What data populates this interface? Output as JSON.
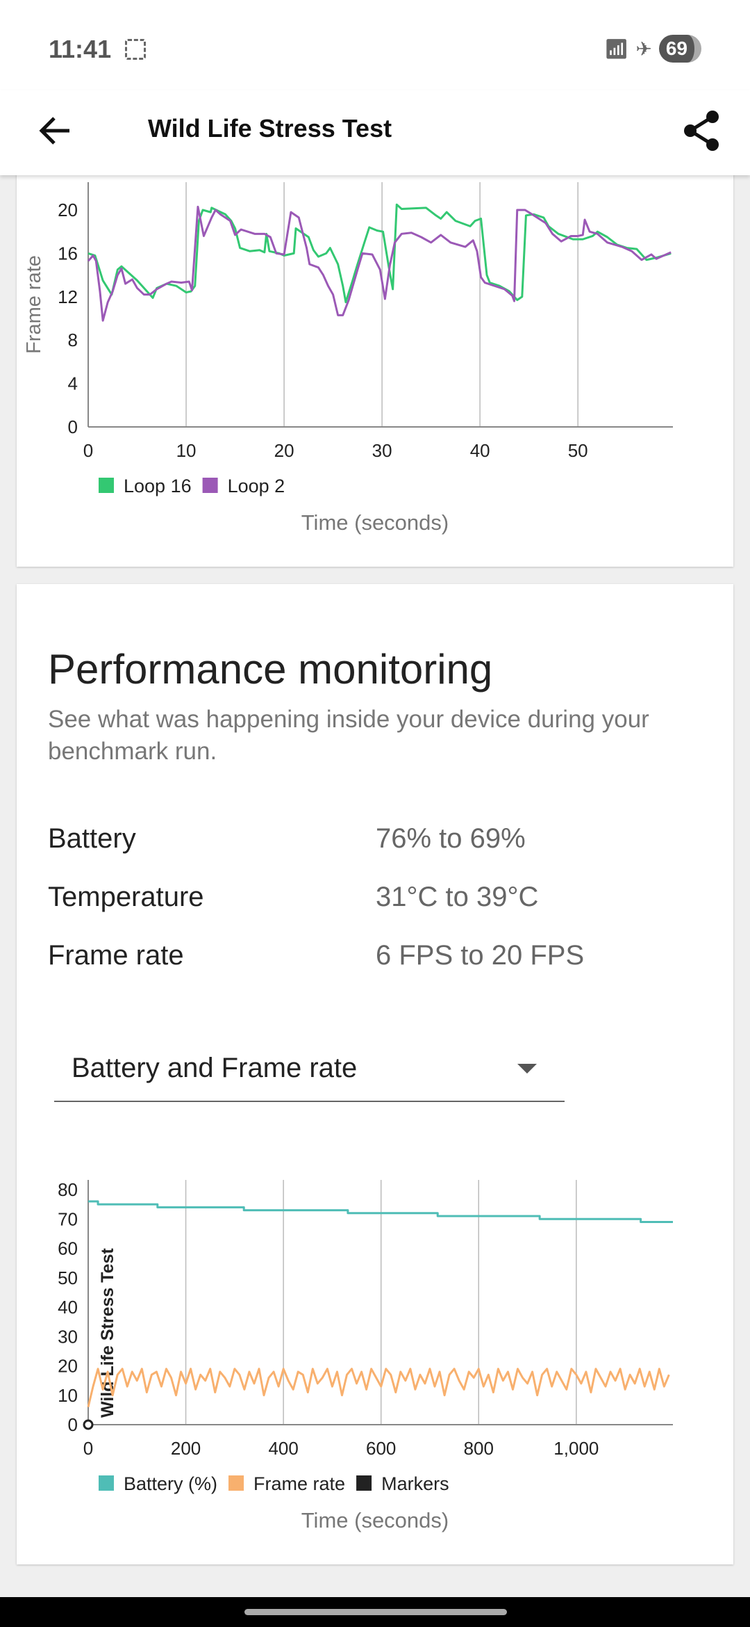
{
  "status_bar": {
    "time": "11:41",
    "battery": "69",
    "icons": [
      "screenshot-icon",
      "wifi-icon",
      "airplane-icon",
      "battery-icon"
    ]
  },
  "app_bar": {
    "title": "Wild Life Stress Test",
    "back_icon": "arrow-left-icon",
    "share_icon": "share-icon"
  },
  "performance": {
    "title": "Performance monitoring",
    "subtitle": "See what was happening inside your device during your benchmark run.",
    "rows": [
      {
        "label": "Battery",
        "value": "76% to 69%"
      },
      {
        "label": "Temperature",
        "value": "31°C to 39°C"
      },
      {
        "label": "Frame rate",
        "value": "6 FPS to 20 FPS"
      }
    ],
    "dropdown": {
      "selected": "Battery and Frame rate"
    }
  },
  "chart_data": [
    {
      "type": "line",
      "xlabel": "Time (seconds)",
      "ylabel": "Frame rate",
      "xlim": [
        0,
        59.7
      ],
      "ylim": [
        0,
        22
      ],
      "xticks": [
        "0",
        "10",
        "20",
        "30",
        "40",
        "50"
      ],
      "yticks": [
        "0",
        "4",
        "8",
        "12",
        "16",
        "20"
      ],
      "grid": "vertical",
      "legend": "bottom-left",
      "series": [
        {
          "name": "Loop 16",
          "color": "#33c872",
          "points": [
            [
              0,
              16
            ],
            [
              0.7,
              15.8
            ],
            [
              1.5,
              13.5
            ],
            [
              2.4,
              12.2
            ],
            [
              3,
              14.5
            ],
            [
              3.4,
              14.8
            ],
            [
              5,
              13.5
            ],
            [
              6,
              12.5
            ],
            [
              6.6,
              11.9
            ],
            [
              7,
              12.8
            ],
            [
              8,
              13.2
            ],
            [
              9,
              13
            ],
            [
              10,
              12.4
            ],
            [
              10.5,
              12.5
            ],
            [
              10.9,
              13
            ],
            [
              11.3,
              19
            ],
            [
              11.7,
              20
            ],
            [
              12.5,
              19.8
            ],
            [
              12.6,
              20.2
            ],
            [
              14,
              19.6
            ],
            [
              14.6,
              19
            ],
            [
              15,
              18.3
            ],
            [
              15.5,
              16.5
            ],
            [
              16.5,
              16.2
            ],
            [
              17.5,
              16.3
            ],
            [
              18,
              16.1
            ],
            [
              18.2,
              17.8
            ],
            [
              18.5,
              16.2
            ],
            [
              19.5,
              16
            ],
            [
              20,
              15.8
            ],
            [
              21,
              16
            ],
            [
              21.2,
              18.3
            ],
            [
              22.5,
              17.5
            ],
            [
              23,
              16.3
            ],
            [
              23.5,
              15.7
            ],
            [
              24.3,
              16
            ],
            [
              24.7,
              16.5
            ],
            [
              25.5,
              15
            ],
            [
              26,
              13
            ],
            [
              26.3,
              11.5
            ],
            [
              27,
              13.5
            ],
            [
              27.5,
              15
            ],
            [
              28.2,
              17
            ],
            [
              28.7,
              18.4
            ],
            [
              29.5,
              18.1
            ],
            [
              30.1,
              18
            ],
            [
              30.7,
              14.7
            ],
            [
              31.1,
              12.7
            ],
            [
              31.5,
              20.5
            ],
            [
              32,
              20.1
            ],
            [
              34.5,
              20.2
            ],
            [
              35.5,
              19.5
            ],
            [
              36,
              19.2
            ],
            [
              36.6,
              19.8
            ],
            [
              37.5,
              19
            ],
            [
              39,
              18.5
            ],
            [
              39.5,
              19
            ],
            [
              40.1,
              19.2
            ],
            [
              40.7,
              14
            ],
            [
              41,
              13.3
            ],
            [
              42,
              13
            ],
            [
              43,
              12.5
            ],
            [
              43.8,
              11.7
            ],
            [
              44.3,
              12
            ],
            [
              44.7,
              19.5
            ],
            [
              45.5,
              19.6
            ],
            [
              46.5,
              19.3
            ],
            [
              47,
              18.5
            ],
            [
              48,
              17.8
            ],
            [
              49.5,
              17.3
            ],
            [
              50.5,
              17.3
            ],
            [
              51.5,
              17.6
            ],
            [
              52,
              18
            ],
            [
              53,
              17.5
            ],
            [
              54,
              16.8
            ],
            [
              55,
              16.5
            ],
            [
              56,
              16.4
            ],
            [
              57,
              15.4
            ],
            [
              58,
              15.6
            ],
            [
              59.5,
              16
            ]
          ]
        },
        {
          "name": "Loop 2",
          "color": "#9b59b6",
          "points": [
            [
              0,
              15.3
            ],
            [
              0.5,
              15.8
            ],
            [
              0.8,
              15.3
            ],
            [
              1.2,
              12.5
            ],
            [
              1.5,
              9.8
            ],
            [
              2,
              11.5
            ],
            [
              2.5,
              12.5
            ],
            [
              3,
              14
            ],
            [
              3.4,
              14.6
            ],
            [
              3.8,
              13.2
            ],
            [
              4.5,
              13.6
            ],
            [
              5,
              12.8
            ],
            [
              5.7,
              12.2
            ],
            [
              6.3,
              12.2
            ],
            [
              7,
              12.7
            ],
            [
              8,
              13.2
            ],
            [
              8.5,
              13.4
            ],
            [
              9.5,
              13.3
            ],
            [
              10.3,
              13.4
            ],
            [
              10.6,
              12.6
            ],
            [
              11.2,
              20.3
            ],
            [
              11.8,
              17.6
            ],
            [
              12.6,
              19.3
            ],
            [
              13,
              20
            ],
            [
              13.5,
              19.6
            ],
            [
              14.5,
              19
            ],
            [
              15,
              17.7
            ],
            [
              15.6,
              18.2
            ],
            [
              17,
              17.8
            ],
            [
              18,
              17.8
            ],
            [
              18.6,
              17.5
            ],
            [
              19.2,
              16
            ],
            [
              20,
              15.9
            ],
            [
              20.7,
              19.8
            ],
            [
              21.5,
              19.3
            ],
            [
              22.3,
              16.5
            ],
            [
              22.6,
              15
            ],
            [
              23.5,
              14.7
            ],
            [
              24,
              14
            ],
            [
              24.5,
              13
            ],
            [
              25,
              12.2
            ],
            [
              25.5,
              10.3
            ],
            [
              26,
              10.3
            ],
            [
              26.6,
              11.7
            ],
            [
              27.5,
              14.5
            ],
            [
              28,
              16
            ],
            [
              29,
              15.9
            ],
            [
              29.8,
              14.5
            ],
            [
              30.3,
              11.8
            ],
            [
              30.8,
              14.9
            ],
            [
              31.3,
              17
            ],
            [
              32,
              17.8
            ],
            [
              33,
              17.9
            ],
            [
              34,
              17.5
            ],
            [
              35,
              17
            ],
            [
              36,
              17.7
            ],
            [
              37,
              17
            ],
            [
              38.5,
              16.6
            ],
            [
              39.3,
              17.2
            ],
            [
              39.7,
              16.2
            ],
            [
              40.1,
              13.8
            ],
            [
              40.5,
              13.3
            ],
            [
              41.5,
              13
            ],
            [
              42.5,
              12.7
            ],
            [
              43.3,
              12.1
            ],
            [
              43.5,
              11.6
            ],
            [
              43.8,
              20
            ],
            [
              44.6,
              20
            ],
            [
              45.5,
              19.5
            ],
            [
              46.7,
              18.8
            ],
            [
              47.4,
              17.8
            ],
            [
              48.3,
              17.1
            ],
            [
              49.3,
              17.6
            ],
            [
              50,
              17.6
            ],
            [
              50.5,
              17.7
            ],
            [
              50.7,
              19.1
            ],
            [
              51.2,
              18
            ],
            [
              52,
              17.8
            ],
            [
              53,
              17
            ],
            [
              54.5,
              16.6
            ],
            [
              55.5,
              16.2
            ],
            [
              56.5,
              15.4
            ],
            [
              57.5,
              15.9
            ],
            [
              58,
              15.5
            ],
            [
              59.5,
              16.1
            ]
          ]
        }
      ]
    },
    {
      "type": "line",
      "xlabel": "Time (seconds)",
      "ylabel": "",
      "xlim": [
        0,
        1198
      ],
      "ylim": [
        0,
        80
      ],
      "xticks": [
        "0",
        "200",
        "400",
        "600",
        "800",
        "1,000"
      ],
      "yticks": [
        "0",
        "10",
        "20",
        "30",
        "40",
        "50",
        "60",
        "70",
        "80"
      ],
      "grid": "vertical",
      "legend": "bottom-left",
      "marker": {
        "label": "Wild Life Stress Test",
        "x": 0,
        "color": "#222222"
      },
      "series": [
        {
          "name": "Battery (%)",
          "color": "#4fbdb6",
          "steps": [
            [
              0,
              76
            ],
            [
              20,
              75
            ],
            [
              142,
              74
            ],
            [
              319,
              73
            ],
            [
              532,
              72
            ],
            [
              716,
              71
            ],
            [
              925,
              70
            ],
            [
              1132,
              69
            ],
            [
              1198,
              69
            ]
          ]
        },
        {
          "name": "Frame rate",
          "color": "#f8b06e",
          "x_start": 0,
          "x_interval": 10,
          "values": [
            6,
            13,
            19,
            12,
            18,
            10,
            17,
            19,
            13,
            18,
            15,
            19,
            11,
            17,
            18,
            13,
            19,
            16,
            10,
            18,
            14,
            19,
            12,
            17,
            15,
            19,
            11,
            18,
            16,
            13,
            19,
            17,
            12,
            18,
            14,
            19,
            10,
            16,
            18,
            13,
            19,
            15,
            12,
            18,
            17,
            11,
            19,
            14,
            16,
            19,
            13,
            18,
            10,
            17,
            19,
            14,
            18,
            12,
            19,
            16,
            13,
            19,
            17,
            11,
            18,
            15,
            19,
            12,
            17,
            14,
            19,
            13,
            18,
            10,
            17,
            19,
            15,
            12,
            18,
            16,
            19,
            13,
            17,
            11,
            19,
            15,
            18,
            12,
            19,
            16,
            14,
            18,
            10,
            17,
            19,
            13,
            18,
            15,
            12,
            19,
            17,
            14,
            18,
            11,
            19,
            16,
            13,
            18,
            15,
            19,
            12,
            17,
            14,
            19,
            13,
            18,
            12,
            19,
            13,
            17
          ]
        },
        {
          "name": "Markers",
          "color": "#222222"
        }
      ]
    }
  ]
}
